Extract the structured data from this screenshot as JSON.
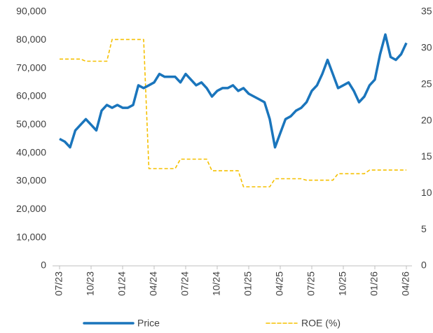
{
  "chart_data": {
    "type": "line",
    "categories": [
      "07/23",
      null,
      null,
      null,
      null,
      null,
      "10/23",
      null,
      null,
      null,
      null,
      null,
      "01/24",
      null,
      null,
      null,
      null,
      null,
      "04/24",
      null,
      null,
      null,
      null,
      null,
      "07/24",
      null,
      null,
      null,
      null,
      null,
      "10/24",
      null,
      null,
      null,
      null,
      null,
      "01/25",
      null,
      null,
      null,
      null,
      null,
      "04/25",
      null,
      null,
      null,
      null,
      null,
      "07/25",
      null,
      null,
      null,
      null,
      null,
      "10/25",
      null,
      null,
      null,
      null,
      null,
      "01/26",
      null,
      null,
      null,
      null,
      null,
      "04/26"
    ],
    "series": [
      {
        "name": "Price",
        "color": "#1a75bc",
        "axis": "y",
        "style": "solid",
        "values": [
          45000,
          44000,
          42000,
          48000,
          50000,
          52000,
          50000,
          48000,
          55000,
          57000,
          56000,
          57000,
          56000,
          56000,
          57000,
          64000,
          63000,
          64000,
          65000,
          68000,
          67000,
          67000,
          67000,
          65000,
          68000,
          66000,
          64000,
          65000,
          63000,
          60000,
          62000,
          63000,
          63000,
          64000,
          62000,
          63000,
          61000,
          60000,
          59000,
          58000,
          52000,
          42000,
          47000,
          52000,
          53000,
          55000,
          56000,
          58000,
          62000,
          64000,
          68000,
          73000,
          68000,
          63000,
          64000,
          65000,
          62000,
          58000,
          60000,
          64000,
          66000,
          75000,
          82000,
          74000,
          73000,
          75000,
          79000
        ]
      },
      {
        "name": "ROE (%)",
        "color": "#f5c000",
        "axis": "y2",
        "style": "dashed",
        "values": [
          28.5,
          28.5,
          28.5,
          28.5,
          28.5,
          28.2,
          28.2,
          28.2,
          28.2,
          28.2,
          31.2,
          31.2,
          31.2,
          31.2,
          31.2,
          31.2,
          31.2,
          13.4,
          13.4,
          13.4,
          13.4,
          13.4,
          13.4,
          14.7,
          14.7,
          14.7,
          14.7,
          14.7,
          14.7,
          13.1,
          13.1,
          13.1,
          13.1,
          13.1,
          13.1,
          10.9,
          10.9,
          10.9,
          10.9,
          10.9,
          10.9,
          12.0,
          12.0,
          12.0,
          12.0,
          12.0,
          12.0,
          11.8,
          11.8,
          11.8,
          11.8,
          11.8,
          11.8,
          12.7,
          12.7,
          12.7,
          12.7,
          12.7,
          12.7,
          13.2,
          13.2,
          13.2,
          13.2,
          13.2,
          13.2,
          13.2,
          13.2
        ]
      }
    ],
    "ylim": [
      0,
      90000
    ],
    "yticks": [
      0,
      {
        "value": 10000,
        "label": "10,000"
      },
      {
        "value": 20000,
        "label": "20,000"
      },
      {
        "value": 30000,
        "label": "30,000"
      },
      {
        "value": 40000,
        "label": "40,000"
      },
      {
        "value": 50000,
        "label": "50,000"
      },
      {
        "value": 60000,
        "label": "60,000"
      },
      {
        "value": 70000,
        "label": "70,000"
      },
      {
        "value": 80000,
        "label": "80,000"
      },
      {
        "value": 90000,
        "label": "90,000"
      }
    ],
    "y2lim": [
      0,
      35
    ],
    "y2ticks": [
      0,
      5,
      10,
      15,
      20,
      25,
      30,
      35
    ],
    "grid": false,
    "legend": "bottom"
  }
}
